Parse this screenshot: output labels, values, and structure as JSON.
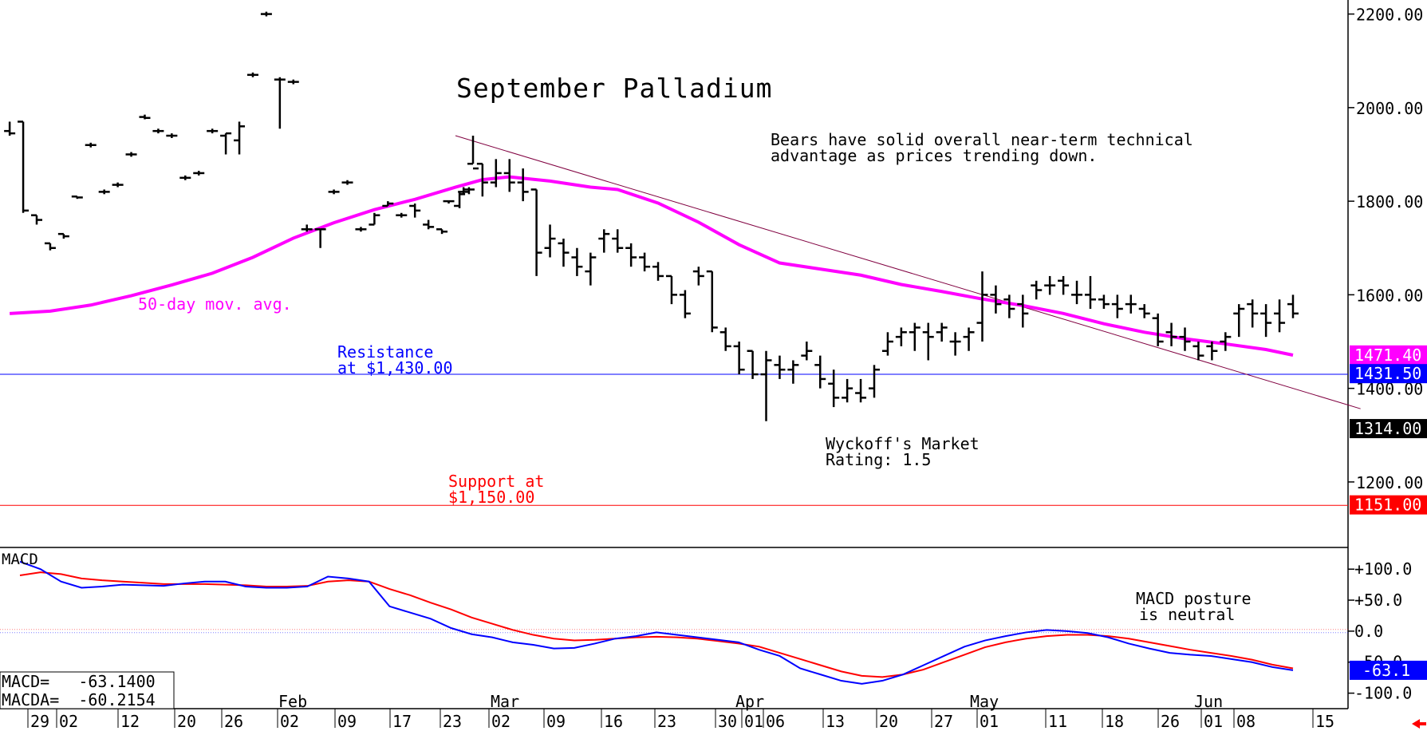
{
  "chart_data": [
    {
      "type": "ohlc",
      "title": "September Palladium",
      "commentary": [
        "Bears have solid overall near-term technical",
        "advantage as prices trending down."
      ],
      "ma_label": "50-day mov. avg.",
      "resistance_label": [
        "Resistance",
        "at $1,430.00"
      ],
      "support_label": [
        "Support at",
        "$1,150.00"
      ],
      "rating_label": [
        "Wyckoff's Market",
        "Rating: 1.5"
      ],
      "ylim": [
        1060,
        2230
      ],
      "y_ticks": [
        "2200.00",
        "2000.00",
        "1800.00",
        "1600.00",
        "1400.00",
        "1200.00"
      ],
      "y_tick_values": [
        2200,
        2000,
        1800,
        1600,
        1400,
        1200
      ],
      "price_tags": [
        {
          "label": "1471.40",
          "value": 1471.4,
          "color": "#ff00ff"
        },
        {
          "label": "1431.50",
          "value": 1431.5,
          "color": "#0000ff"
        },
        {
          "label": "1314.00",
          "value": 1314.0,
          "color": "#000000"
        },
        {
          "label": "1151.00",
          "value": 1151.0,
          "color": "#ff0000"
        }
      ],
      "resistance": 1430,
      "support": 1150,
      "trendline": [
        [
          0,
          1940
        ],
        [
          62,
          1400
        ]
      ],
      "x_first_day": 0,
      "x_last_day": 62,
      "ma_50": [
        [
          -33,
          1560
        ],
        [
          -30,
          1565
        ],
        [
          -27,
          1578
        ],
        [
          -24,
          1598
        ],
        [
          -21,
          1621
        ],
        [
          -18,
          1646
        ],
        [
          -15,
          1680
        ],
        [
          -12,
          1721
        ],
        [
          -9,
          1754
        ],
        [
          -6,
          1782
        ],
        [
          -3,
          1804
        ],
        [
          0,
          1830
        ],
        [
          2,
          1846
        ],
        [
          4,
          1852
        ],
        [
          7,
          1843
        ],
        [
          10,
          1830
        ],
        [
          12,
          1825
        ],
        [
          15,
          1796
        ],
        [
          18,
          1755
        ],
        [
          21,
          1707
        ],
        [
          24,
          1668
        ],
        [
          27,
          1655
        ],
        [
          30,
          1642
        ],
        [
          33,
          1622
        ],
        [
          36,
          1607
        ],
        [
          39,
          1591
        ],
        [
          42,
          1577
        ],
        [
          45,
          1560
        ],
        [
          48,
          1538
        ],
        [
          51,
          1520
        ],
        [
          54,
          1506
        ],
        [
          57,
          1495
        ],
        [
          60,
          1483
        ],
        [
          62,
          1471
        ]
      ],
      "ohlc": [
        [
          -33,
          1950,
          1970,
          1940,
          1945
        ],
        [
          -32,
          1970,
          1970,
          1775,
          1780
        ],
        [
          -31,
          1770,
          1770,
          1750,
          1760
        ],
        [
          -30,
          1710,
          1710,
          1695,
          1700
        ],
        [
          -29,
          1730,
          1730,
          1720,
          1725
        ],
        [
          -28,
          1810,
          1810,
          1805,
          1808
        ],
        [
          -27,
          1920,
          1925,
          1915,
          1920
        ],
        [
          -26,
          1820,
          1825,
          1815,
          1820
        ],
        [
          -25,
          1835,
          1840,
          1830,
          1835
        ],
        [
          -24,
          1900,
          1905,
          1895,
          1900
        ],
        [
          -23,
          1980,
          1985,
          1975,
          1978
        ],
        [
          -22,
          1950,
          1955,
          1945,
          1950
        ],
        [
          -21,
          1940,
          1945,
          1935,
          1940
        ],
        [
          -20,
          1850,
          1855,
          1845,
          1850
        ],
        [
          -19,
          1860,
          1865,
          1855,
          1860
        ],
        [
          -18,
          1950,
          1955,
          1945,
          1950
        ],
        [
          -17,
          1940,
          1945,
          1900,
          1945
        ],
        [
          -16,
          1930,
          1970,
          1900,
          1960
        ],
        [
          -15,
          2070,
          2075,
          2065,
          2070
        ],
        [
          -14,
          2200,
          2205,
          2195,
          2200
        ],
        [
          -13,
          2060,
          2065,
          1955,
          2060
        ],
        [
          -12,
          2055,
          2060,
          2050,
          2055
        ],
        [
          -11,
          1740,
          1750,
          1735,
          1740
        ],
        [
          -10,
          1740,
          1740,
          1700,
          1740
        ],
        [
          -9,
          1820,
          1825,
          1815,
          1820
        ],
        [
          -8,
          1840,
          1845,
          1835,
          1840
        ],
        [
          -7,
          1740,
          1745,
          1735,
          1740
        ],
        [
          -6,
          1750,
          1775,
          1750,
          1770
        ],
        [
          -5,
          1790,
          1800,
          1790,
          1795
        ],
        [
          -4,
          1770,
          1775,
          1765,
          1770
        ],
        [
          -3,
          1790,
          1795,
          1765,
          1780
        ],
        [
          -2,
          1750,
          1760,
          1740,
          1745
        ],
        [
          -1,
          1740,
          1740,
          1730,
          1735
        ],
        [
          -0.5,
          1800,
          1800,
          1795,
          1800
        ],
        [
          0.3,
          1790,
          1820,
          1785,
          1815
        ],
        [
          0.6,
          1820,
          1830,
          1815,
          1825
        ],
        [
          1,
          1820,
          1830,
          1815,
          1825
        ],
        [
          1.3,
          1880,
          1940,
          1880,
          1870
        ],
        [
          2,
          1880,
          1880,
          1810,
          1840
        ],
        [
          3,
          1840,
          1890,
          1830,
          1860
        ],
        [
          4,
          1860,
          1890,
          1820,
          1840
        ],
        [
          5,
          1840,
          1870,
          1800,
          1820
        ],
        [
          6,
          1825,
          1825,
          1640,
          1690
        ],
        [
          7,
          1700,
          1750,
          1680,
          1720
        ],
        [
          8,
          1710,
          1720,
          1660,
          1690
        ],
        [
          9,
          1680,
          1700,
          1640,
          1660
        ],
        [
          10,
          1650,
          1690,
          1620,
          1680
        ],
        [
          11,
          1720,
          1740,
          1690,
          1730
        ],
        [
          12,
          1720,
          1740,
          1690,
          1700
        ],
        [
          13,
          1700,
          1710,
          1660,
          1680
        ],
        [
          14,
          1680,
          1690,
          1650,
          1660
        ],
        [
          15,
          1660,
          1670,
          1630,
          1640
        ],
        [
          16,
          1640,
          1640,
          1580,
          1600
        ],
        [
          17,
          1600,
          1610,
          1550,
          1560
        ],
        [
          18,
          1650,
          1660,
          1620,
          1640
        ],
        [
          19,
          1650,
          1650,
          1520,
          1530
        ],
        [
          20,
          1520,
          1530,
          1480,
          1490
        ],
        [
          21,
          1490,
          1500,
          1430,
          1440
        ],
        [
          22,
          1480,
          1480,
          1420,
          1430
        ],
        [
          23,
          1430,
          1480,
          1330,
          1460
        ],
        [
          24,
          1450,
          1470,
          1420,
          1440
        ],
        [
          25,
          1440,
          1460,
          1410,
          1450
        ],
        [
          26,
          1470,
          1500,
          1460,
          1480
        ],
        [
          27,
          1450,
          1470,
          1400,
          1420
        ],
        [
          28,
          1410,
          1440,
          1360,
          1380
        ],
        [
          29,
          1380,
          1420,
          1370,
          1400
        ],
        [
          30,
          1390,
          1420,
          1370,
          1380
        ],
        [
          31,
          1400,
          1450,
          1380,
          1440
        ],
        [
          32,
          1480,
          1520,
          1470,
          1500
        ],
        [
          33,
          1510,
          1530,
          1490,
          1520
        ],
        [
          34,
          1520,
          1540,
          1480,
          1530
        ],
        [
          35,
          1520,
          1540,
          1460,
          1510
        ],
        [
          36,
          1520,
          1540,
          1500,
          1530
        ],
        [
          37,
          1500,
          1520,
          1470,
          1500
        ],
        [
          38,
          1510,
          1530,
          1480,
          1520
        ],
        [
          39,
          1540,
          1650,
          1500,
          1600
        ],
        [
          40,
          1600,
          1620,
          1560,
          1580
        ],
        [
          41,
          1590,
          1600,
          1550,
          1570
        ],
        [
          42,
          1580,
          1600,
          1530,
          1560
        ],
        [
          43,
          1620,
          1630,
          1590,
          1610
        ],
        [
          44,
          1620,
          1640,
          1600,
          1620
        ],
        [
          45,
          1630,
          1640,
          1600,
          1620
        ],
        [
          46,
          1600,
          1630,
          1580,
          1600
        ],
        [
          47,
          1600,
          1640,
          1570,
          1590
        ],
        [
          48,
          1590,
          1600,
          1570,
          1580
        ],
        [
          49,
          1580,
          1600,
          1550,
          1570
        ],
        [
          50,
          1580,
          1600,
          1560,
          1580
        ],
        [
          51,
          1570,
          1580,
          1550,
          1560
        ],
        [
          52,
          1550,
          1560,
          1490,
          1500
        ],
        [
          53,
          1520,
          1540,
          1490,
          1510
        ],
        [
          54,
          1510,
          1530,
          1480,
          1500
        ],
        [
          55,
          1490,
          1500,
          1460,
          1470
        ],
        [
          56,
          1490,
          1500,
          1460,
          1480
        ],
        [
          57,
          1500,
          1520,
          1480,
          1510
        ],
        [
          58,
          1560,
          1580,
          1510,
          1570
        ],
        [
          59,
          1580,
          1590,
          1530,
          1560
        ],
        [
          60,
          1560,
          1580,
          1510,
          1540
        ],
        [
          61,
          1560,
          1590,
          1520,
          1540
        ],
        [
          62,
          1580,
          1600,
          1550,
          1560
        ]
      ],
      "x_day_labels": [
        "29",
        "02",
        "12",
        "20",
        "26",
        "02",
        "09",
        "17",
        "23",
        "02",
        "09",
        "16",
        "23",
        "30",
        "01",
        "06",
        "13",
        "20",
        "27",
        "01",
        "11",
        "18",
        "26",
        "01",
        "08",
        "15"
      ],
      "x_month_labels": [
        "Feb",
        "Mar",
        "Apr",
        "May",
        "Jun"
      ]
    },
    {
      "type": "line",
      "title": "MACD",
      "readout": [
        "MACD=   -63.1400",
        "MACDA=  -60.2154"
      ],
      "annotation": [
        "MACD posture",
        "is neutral"
      ],
      "ylim": [
        -125,
        135
      ],
      "y_ticks": [
        "+100.0",
        "+50.0",
        "0.0",
        "-50.0",
        "-100.0"
      ],
      "y_tick_values": [
        100,
        50,
        0,
        -50,
        -100
      ],
      "value_tag": {
        "label": "-63.1",
        "value": -63.1,
        "color": "#0000ff"
      },
      "series": [
        {
          "name": "MACD",
          "color": "#0000ff",
          "x": [
            0,
            1,
            2,
            3,
            4,
            5,
            6,
            7,
            8,
            9,
            10,
            11,
            12,
            13,
            14,
            15,
            16,
            17,
            18,
            19,
            20,
            21,
            22,
            23,
            24,
            25,
            26,
            27,
            28,
            29,
            30,
            31,
            32,
            33,
            34,
            35,
            36,
            37,
            38,
            39,
            40,
            41,
            42,
            43,
            44,
            45,
            46,
            47,
            48,
            49,
            50,
            51,
            52,
            53,
            54,
            55,
            56,
            57,
            58,
            59,
            60,
            61,
            62
          ],
          "y": [
            112,
            100,
            80,
            70,
            72,
            75,
            74,
            73,
            77,
            80,
            80,
            72,
            70,
            70,
            72,
            88,
            85,
            80,
            40,
            30,
            20,
            5,
            -5,
            -10,
            -18,
            -22,
            -28,
            -27,
            -20,
            -12,
            -8,
            -2,
            -6,
            -10,
            -14,
            -18,
            -30,
            -40,
            -60,
            -70,
            -80,
            -85,
            -80,
            -70,
            -55,
            -40,
            -25,
            -15,
            -8,
            -2,
            2,
            0,
            -3,
            -10,
            -20,
            -28,
            -35,
            -38,
            -40,
            -45,
            -50,
            -58,
            -63
          ]
        },
        {
          "name": "MACDA",
          "color": "#ff0000",
          "x": [
            0,
            1,
            2,
            3,
            4,
            5,
            6,
            7,
            8,
            9,
            10,
            11,
            12,
            13,
            14,
            15,
            16,
            17,
            18,
            19,
            20,
            21,
            22,
            23,
            24,
            25,
            26,
            27,
            28,
            29,
            30,
            31,
            32,
            33,
            34,
            35,
            36,
            37,
            38,
            39,
            40,
            41,
            42,
            43,
            44,
            45,
            46,
            47,
            48,
            49,
            50,
            51,
            52,
            53,
            54,
            55,
            56,
            57,
            58,
            59,
            60,
            61,
            62
          ],
          "y": [
            90,
            95,
            92,
            85,
            82,
            80,
            78,
            76,
            76,
            76,
            75,
            74,
            72,
            72,
            73,
            80,
            82,
            80,
            68,
            58,
            46,
            35,
            22,
            12,
            2,
            -6,
            -12,
            -15,
            -14,
            -12,
            -10,
            -9,
            -10,
            -12,
            -16,
            -20,
            -25,
            -35,
            -45,
            -55,
            -65,
            -72,
            -74,
            -70,
            -62,
            -50,
            -38,
            -26,
            -18,
            -12,
            -8,
            -6,
            -6,
            -8,
            -12,
            -18,
            -24,
            -30,
            -35,
            -40,
            -46,
            -54,
            -60
          ]
        }
      ]
    }
  ]
}
